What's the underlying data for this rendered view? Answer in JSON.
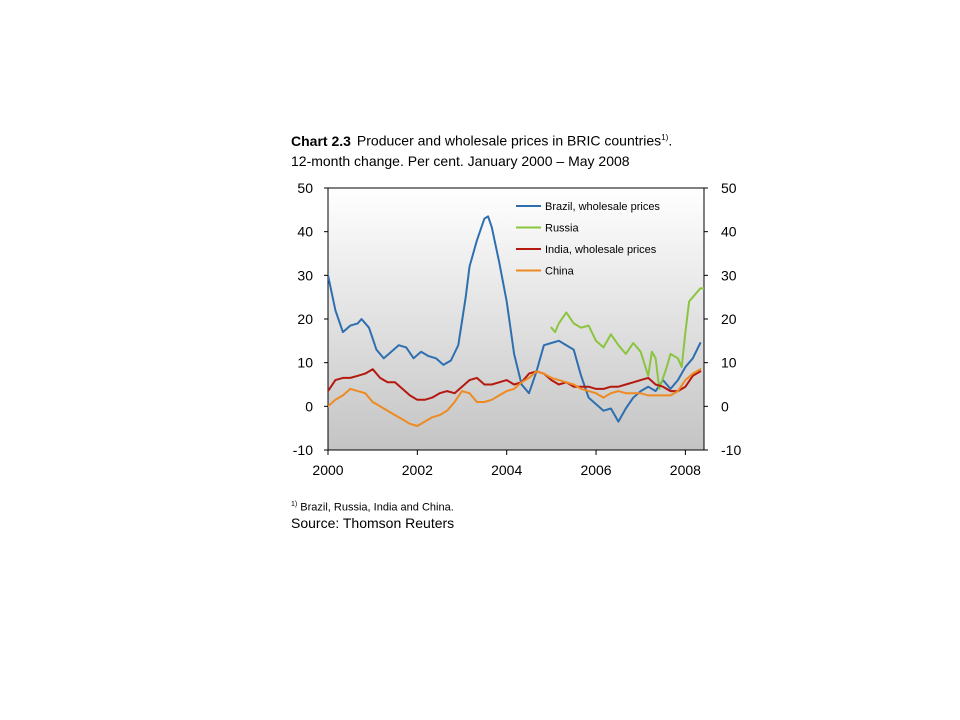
{
  "title": {
    "number": "Chart 2.3",
    "text": "Producer and wholesale prices in BRIC countries",
    "superscript": "1)",
    "trailing": ".",
    "subtitle": "12-month change. Per cent. January 2000 – May 2008"
  },
  "footnote": {
    "marker": "1)",
    "text": "Brazil, Russia, India and China."
  },
  "source": "Source: Thomson Reuters",
  "colors": {
    "background_top": "#ffffff",
    "background_bottom": "#c4c4c4",
    "Brazil": "#2e6fb0",
    "Russia": "#8bc53f",
    "India": "#b5180f",
    "China": "#ef8a22"
  },
  "chart_data": {
    "type": "line",
    "x_unit": "date",
    "xlim": [
      "2000-01",
      "2008-06"
    ],
    "ylim": [
      -10,
      50
    ],
    "yticks": [
      -10,
      0,
      10,
      20,
      30,
      40,
      50
    ],
    "xtick_labels": [
      "2000",
      "2002",
      "2004",
      "2006",
      "2008"
    ],
    "xtick_dates": [
      "2000-01",
      "2002-01",
      "2004-01",
      "2006-01",
      "2008-01"
    ],
    "dual_y_axis": true,
    "grid": false,
    "legend_position": "top-right",
    "series": [
      {
        "name": "Brazil, wholesale prices",
        "color_key": "Brazil",
        "points": [
          [
            "2000-01",
            30
          ],
          [
            "2000-03",
            22
          ],
          [
            "2000-05",
            17
          ],
          [
            "2000-07",
            18.5
          ],
          [
            "2000-09",
            19
          ],
          [
            "2000-10",
            20
          ],
          [
            "2000-12",
            18
          ],
          [
            "2001-02",
            13
          ],
          [
            "2001-04",
            11
          ],
          [
            "2001-06",
            12.5
          ],
          [
            "2001-08",
            14
          ],
          [
            "2001-10",
            13.5
          ],
          [
            "2001-12",
            11
          ],
          [
            "2002-02",
            12.5
          ],
          [
            "2002-04",
            11.5
          ],
          [
            "2002-06",
            11
          ],
          [
            "2002-08",
            9.5
          ],
          [
            "2002-10",
            10.5
          ],
          [
            "2002-12",
            14
          ],
          [
            "2003-02",
            25
          ],
          [
            "2003-03",
            32
          ],
          [
            "2003-05",
            38
          ],
          [
            "2003-07",
            43
          ],
          [
            "2003-08",
            43.5
          ],
          [
            "2003-09",
            41
          ],
          [
            "2003-11",
            33
          ],
          [
            "2004-01",
            24
          ],
          [
            "2004-03",
            12
          ],
          [
            "2004-05",
            5
          ],
          [
            "2004-07",
            3
          ],
          [
            "2004-09",
            8
          ],
          [
            "2004-11",
            14
          ],
          [
            "2005-01",
            14.5
          ],
          [
            "2005-03",
            15
          ],
          [
            "2005-05",
            14
          ],
          [
            "2005-07",
            13
          ],
          [
            "2005-09",
            7
          ],
          [
            "2005-11",
            2
          ],
          [
            "2006-01",
            0.5
          ],
          [
            "2006-03",
            -1
          ],
          [
            "2006-05",
            -0.5
          ],
          [
            "2006-07",
            -3.5
          ],
          [
            "2006-09",
            -0.5
          ],
          [
            "2006-11",
            2
          ],
          [
            "2007-01",
            3.5
          ],
          [
            "2007-03",
            4.5
          ],
          [
            "2007-05",
            3.5
          ],
          [
            "2007-07",
            6
          ],
          [
            "2007-09",
            4
          ],
          [
            "2007-11",
            6
          ],
          [
            "2008-01",
            9
          ],
          [
            "2008-03",
            11
          ],
          [
            "2008-05",
            14.5
          ]
        ]
      },
      {
        "name": "Russia",
        "color_key": "Russia",
        "points": [
          [
            "2005-01",
            18
          ],
          [
            "2005-02",
            17
          ],
          [
            "2005-03",
            19
          ],
          [
            "2005-05",
            21.5
          ],
          [
            "2005-07",
            19
          ],
          [
            "2005-09",
            18
          ],
          [
            "2005-11",
            18.5
          ],
          [
            "2006-01",
            15
          ],
          [
            "2006-03",
            13.5
          ],
          [
            "2006-05",
            16.5
          ],
          [
            "2006-07",
            14
          ],
          [
            "2006-09",
            12
          ],
          [
            "2006-11",
            14.5
          ],
          [
            "2007-01",
            12.5
          ],
          [
            "2007-03",
            7
          ],
          [
            "2007-04",
            12.5
          ],
          [
            "2007-05",
            11
          ],
          [
            "2007-06",
            4
          ],
          [
            "2007-08",
            9
          ],
          [
            "2007-09",
            12
          ],
          [
            "2007-11",
            11
          ],
          [
            "2007-12",
            9
          ],
          [
            "2008-01",
            17
          ],
          [
            "2008-02",
            24
          ],
          [
            "2008-03",
            25
          ],
          [
            "2008-05",
            27
          ],
          [
            "2008-06",
            27
          ]
        ]
      },
      {
        "name": "India, wholesale prices",
        "color_key": "India",
        "points": [
          [
            "2000-01",
            3.5
          ],
          [
            "2000-03",
            6
          ],
          [
            "2000-05",
            6.5
          ],
          [
            "2000-07",
            6.5
          ],
          [
            "2000-09",
            7
          ],
          [
            "2000-11",
            7.5
          ],
          [
            "2001-01",
            8.5
          ],
          [
            "2001-03",
            6.5
          ],
          [
            "2001-05",
            5.5
          ],
          [
            "2001-07",
            5.5
          ],
          [
            "2001-09",
            4
          ],
          [
            "2001-11",
            2.5
          ],
          [
            "2002-01",
            1.5
          ],
          [
            "2002-03",
            1.5
          ],
          [
            "2002-05",
            2
          ],
          [
            "2002-07",
            3
          ],
          [
            "2002-09",
            3.5
          ],
          [
            "2002-11",
            3
          ],
          [
            "2003-01",
            4.5
          ],
          [
            "2003-03",
            6
          ],
          [
            "2003-05",
            6.5
          ],
          [
            "2003-07",
            5
          ],
          [
            "2003-09",
            5
          ],
          [
            "2003-11",
            5.5
          ],
          [
            "2004-01",
            6
          ],
          [
            "2004-03",
            5
          ],
          [
            "2004-05",
            5.5
          ],
          [
            "2004-07",
            7.5
          ],
          [
            "2004-09",
            8
          ],
          [
            "2004-11",
            7.5
          ],
          [
            "2005-01",
            6
          ],
          [
            "2005-03",
            5
          ],
          [
            "2005-05",
            5.5
          ],
          [
            "2005-07",
            4.5
          ],
          [
            "2005-09",
            4.5
          ],
          [
            "2005-11",
            4.5
          ],
          [
            "2006-01",
            4
          ],
          [
            "2006-03",
            4
          ],
          [
            "2006-05",
            4.5
          ],
          [
            "2006-07",
            4.5
          ],
          [
            "2006-09",
            5
          ],
          [
            "2006-11",
            5.5
          ],
          [
            "2007-01",
            6
          ],
          [
            "2007-03",
            6.5
          ],
          [
            "2007-05",
            5
          ],
          [
            "2007-07",
            4.5
          ],
          [
            "2007-09",
            3.5
          ],
          [
            "2007-11",
            3.5
          ],
          [
            "2008-01",
            4.5
          ],
          [
            "2008-03",
            7
          ],
          [
            "2008-05",
            8
          ]
        ]
      },
      {
        "name": "China",
        "color_key": "China",
        "points": [
          [
            "2000-01",
            0
          ],
          [
            "2000-03",
            1.5
          ],
          [
            "2000-05",
            2.5
          ],
          [
            "2000-07",
            4
          ],
          [
            "2000-09",
            3.5
          ],
          [
            "2000-11",
            3
          ],
          [
            "2001-01",
            1
          ],
          [
            "2001-03",
            0
          ],
          [
            "2001-05",
            -1
          ],
          [
            "2001-07",
            -2
          ],
          [
            "2001-09",
            -3
          ],
          [
            "2001-11",
            -4
          ],
          [
            "2002-01",
            -4.5
          ],
          [
            "2002-03",
            -3.5
          ],
          [
            "2002-05",
            -2.5
          ],
          [
            "2002-07",
            -2
          ],
          [
            "2002-09",
            -1
          ],
          [
            "2002-11",
            1
          ],
          [
            "2003-01",
            3.5
          ],
          [
            "2003-03",
            3
          ],
          [
            "2003-05",
            1
          ],
          [
            "2003-07",
            1
          ],
          [
            "2003-09",
            1.5
          ],
          [
            "2003-11",
            2.5
          ],
          [
            "2004-01",
            3.5
          ],
          [
            "2004-03",
            4
          ],
          [
            "2004-05",
            5.5
          ],
          [
            "2004-07",
            6.5
          ],
          [
            "2004-09",
            8
          ],
          [
            "2004-11",
            7.5
          ],
          [
            "2005-01",
            6.5
          ],
          [
            "2005-03",
            6
          ],
          [
            "2005-05",
            5.5
          ],
          [
            "2005-07",
            5
          ],
          [
            "2005-09",
            4
          ],
          [
            "2005-11",
            3.5
          ],
          [
            "2006-01",
            3
          ],
          [
            "2006-03",
            2
          ],
          [
            "2006-05",
            3
          ],
          [
            "2006-07",
            3.5
          ],
          [
            "2006-09",
            3
          ],
          [
            "2006-11",
            3
          ],
          [
            "2007-01",
            3
          ],
          [
            "2007-03",
            2.5
          ],
          [
            "2007-05",
            2.5
          ],
          [
            "2007-07",
            2.5
          ],
          [
            "2007-09",
            2.5
          ],
          [
            "2007-11",
            3.5
          ],
          [
            "2008-01",
            6
          ],
          [
            "2008-03",
            7.5
          ],
          [
            "2008-05",
            8.5
          ]
        ]
      }
    ]
  }
}
